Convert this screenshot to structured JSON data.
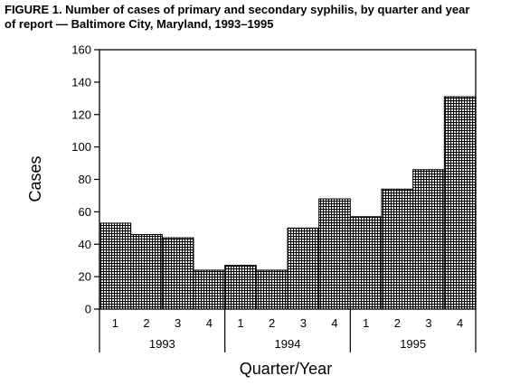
{
  "figure": {
    "title_line1": "FIGURE 1. Number of cases of primary and secondary syphilis, by quarter and year",
    "title_line2": "of report — Baltimore City, Maryland, 1993–1995"
  },
  "chart_data": {
    "type": "bar",
    "title": "FIGURE 1. Number of cases of primary and secondary syphilis, by quarter and year of report — Baltimore City, Maryland, 1993–1995",
    "xlabel": "Quarter/Year",
    "ylabel": "Cases",
    "ylim": [
      0,
      160
    ],
    "yticks": [
      0,
      20,
      40,
      60,
      80,
      100,
      120,
      140,
      160
    ],
    "categories": [
      "1",
      "2",
      "3",
      "4",
      "1",
      "2",
      "3",
      "4",
      "1",
      "2",
      "3",
      "4"
    ],
    "years": [
      {
        "label": "1993",
        "quarters": 4
      },
      {
        "label": "1994",
        "quarters": 4
      },
      {
        "label": "1995",
        "quarters": 4
      }
    ],
    "values": [
      53,
      46,
      44,
      24,
      27,
      24,
      50,
      68,
      57,
      74,
      86,
      131
    ],
    "grid": false,
    "bar_fill": "crosshatch",
    "bar_color": "#000000"
  }
}
